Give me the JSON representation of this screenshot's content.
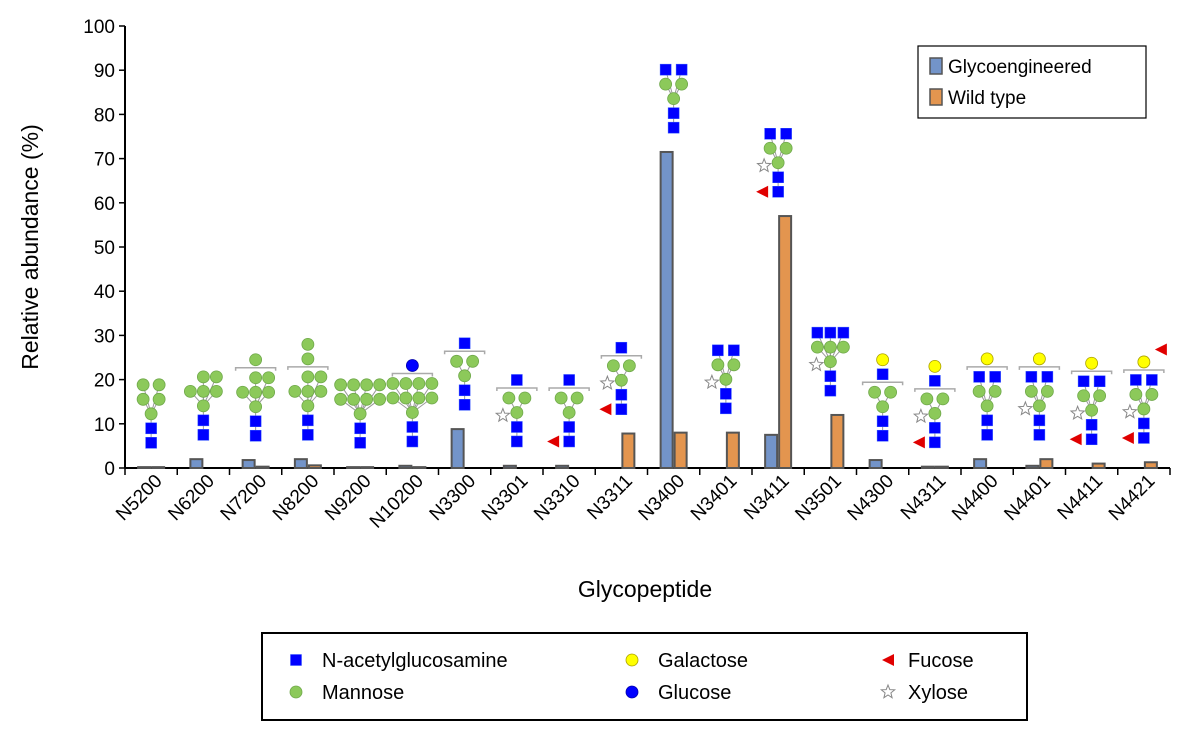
{
  "chart_data": {
    "type": "bar",
    "xlabel": "Glycopeptide",
    "ylabel": "Relative abundance (%)",
    "ylim": [
      0,
      100
    ],
    "yticks": [
      0,
      10,
      20,
      30,
      40,
      50,
      60,
      70,
      80,
      90,
      100
    ],
    "grid": false,
    "legend_position": "top-right",
    "categories": [
      "N5200",
      "N6200",
      "N7200",
      "N8200",
      "N9200",
      "N10200",
      "N3300",
      "N3301",
      "N3310",
      "N3311",
      "N3400",
      "N3401",
      "N3411",
      "N3501",
      "N4300",
      "N4311",
      "N4400",
      "N4401",
      "N4411",
      "N4421"
    ],
    "series": [
      {
        "name": "Glycoengineered",
        "color": "#7394c9",
        "values": [
          0.2,
          2,
          1.8,
          2,
          0.2,
          0.5,
          8.8,
          0.5,
          0.5,
          0,
          71.5,
          0,
          7.5,
          0,
          1.8,
          0.3,
          2,
          0.5,
          0,
          0
        ]
      },
      {
        "name": "Wild type",
        "color": "#e3954f",
        "values": [
          0.2,
          0,
          0.3,
          0.6,
          0.2,
          0.2,
          0,
          0,
          0,
          7.8,
          8,
          8,
          57,
          12,
          0,
          0.3,
          0,
          2,
          1,
          1.3
        ]
      }
    ],
    "glycans": [
      {
        "arms": [
          [
            "M",
            "M"
          ],
          [
            "M",
            "M"
          ]
        ]
      },
      {
        "arms": [
          [
            "M"
          ],
          [
            "M",
            "M"
          ],
          [
            "M",
            "M"
          ]
        ]
      },
      {
        "arms": [
          [
            "M"
          ],
          [
            "M",
            "M"
          ],
          [
            "M",
            "M"
          ]
        ],
        "bracket": [
          "M"
        ]
      },
      {
        "arms": [
          [
            "M"
          ],
          [
            "M",
            "M"
          ],
          [
            "M",
            "M"
          ]
        ],
        "bracket": [
          "M",
          "M"
        ]
      },
      {
        "arms": [
          [
            "M",
            "M"
          ],
          [
            "M",
            "M"
          ],
          [
            "M",
            "M"
          ],
          [
            "M",
            "M"
          ]
        ]
      },
      {
        "arms": [
          [
            "M",
            "M"
          ],
          [
            "M",
            "M"
          ],
          [
            "M",
            "M"
          ],
          [
            "M",
            "M"
          ]
        ],
        "bracket": [
          "C"
        ]
      },
      {
        "arms": [
          [
            "M"
          ],
          [
            "M"
          ]
        ],
        "bracket": [
          "G"
        ]
      },
      {
        "arms": [
          [
            "M"
          ],
          [
            "M"
          ]
        ],
        "bracket": [
          "G"
        ],
        "xyl": true
      },
      {
        "arms": [
          [
            "M"
          ],
          [
            "M"
          ]
        ],
        "bracket": [
          "G"
        ],
        "fuc": true
      },
      {
        "arms": [
          [
            "M"
          ],
          [
            "M"
          ]
        ],
        "bracket": [
          "G"
        ],
        "xyl": true,
        "fuc": true
      },
      {
        "arms": [
          [
            "M",
            "G"
          ],
          [
            "M",
            "G"
          ]
        ]
      },
      {
        "arms": [
          [
            "M",
            "G"
          ],
          [
            "M",
            "G"
          ]
        ],
        "xyl": true
      },
      {
        "arms": [
          [
            "M",
            "G"
          ],
          [
            "M",
            "G"
          ]
        ],
        "xyl": true,
        "fuc": true
      },
      {
        "arms": [
          [
            "M",
            "G"
          ],
          [
            "M",
            "G"
          ],
          [
            "M",
            "G"
          ]
        ],
        "xyl": true
      },
      {
        "arms": [
          [
            "M"
          ],
          [
            "M"
          ]
        ],
        "bracket": [
          "G",
          "L"
        ]
      },
      {
        "arms": [
          [
            "M"
          ],
          [
            "M"
          ]
        ],
        "bracket": [
          "G",
          "L"
        ],
        "xyl": true,
        "fuc": true
      },
      {
        "arms": [
          [
            "M",
            "G"
          ],
          [
            "M",
            "G"
          ]
        ],
        "bracket": [
          "L"
        ]
      },
      {
        "arms": [
          [
            "M",
            "G"
          ],
          [
            "M",
            "G"
          ]
        ],
        "bracket": [
          "L"
        ],
        "xyl": true
      },
      {
        "arms": [
          [
            "M",
            "G"
          ],
          [
            "M",
            "G"
          ]
        ],
        "bracket": [
          "L"
        ],
        "xyl": true,
        "fuc": true
      },
      {
        "arms": [
          [
            "M",
            "G"
          ],
          [
            "M",
            "G"
          ]
        ],
        "bracket": [
          "L",
          "F"
        ],
        "xyl": true,
        "fuc": true
      }
    ]
  },
  "symbol_legend": [
    {
      "code": "G",
      "label": "N-acetylglucosamine",
      "color": "#0000ff"
    },
    {
      "code": "L",
      "label": "Galactose",
      "color": "#ffff00"
    },
    {
      "code": "F",
      "label": "Fucose",
      "color": "#e00000"
    },
    {
      "code": "M",
      "label": "Mannose",
      "color": "#8cc95a"
    },
    {
      "code": "C",
      "label": "Glucose",
      "color": "#0000ff"
    },
    {
      "code": "X",
      "label": "Xylose",
      "color": "#ffffff"
    }
  ]
}
